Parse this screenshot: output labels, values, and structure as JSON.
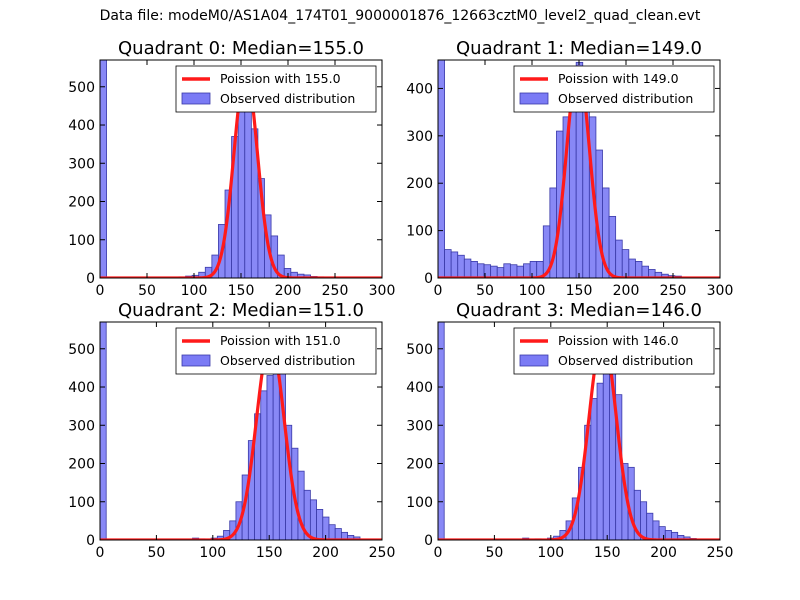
{
  "figure": {
    "suptitle": "Data file: modeM0/AS1A04_174T01_9000001876_12663cztM0_level2_quad_clean.evt"
  },
  "colors": {
    "hist_fill": "#7b7bf5",
    "hist_edge": "#3a3aa8",
    "poisson_line": "#ff1a1a"
  },
  "chart_data": [
    {
      "type": "bar",
      "title": "Quadrant 0: Median=155.0",
      "xlim": [
        0,
        300
      ],
      "ylim": [
        0,
        570
      ],
      "xticks": [
        0,
        50,
        100,
        150,
        200,
        250,
        300
      ],
      "yticks": [
        0,
        100,
        200,
        300,
        400,
        500
      ],
      "legend": {
        "placement": "top-right",
        "line_label": "Poission with 155.0",
        "hist_label": "Observed distribution"
      },
      "bin_width": 7,
      "bins": [
        [
          0,
          570
        ],
        [
          84,
          3
        ],
        [
          91,
          5
        ],
        [
          98,
          7
        ],
        [
          105,
          15
        ],
        [
          112,
          28
        ],
        [
          119,
          60
        ],
        [
          126,
          140
        ],
        [
          133,
          230
        ],
        [
          140,
          370
        ],
        [
          147,
          460
        ],
        [
          154,
          550
        ],
        [
          161,
          390
        ],
        [
          168,
          260
        ],
        [
          175,
          165
        ],
        [
          182,
          110
        ],
        [
          189,
          60
        ],
        [
          196,
          25
        ],
        [
          203,
          15
        ],
        [
          210,
          10
        ],
        [
          217,
          8
        ],
        [
          224,
          4
        ],
        [
          231,
          3
        ],
        [
          238,
          2
        ]
      ],
      "poisson": {
        "mean": 155.0,
        "peak": 540
      }
    },
    {
      "type": "bar",
      "title": "Quadrant 1: Median=149.0",
      "xlim": [
        0,
        300
      ],
      "ylim": [
        0,
        460
      ],
      "xticks": [
        0,
        50,
        100,
        150,
        200,
        250,
        300
      ],
      "yticks": [
        0,
        100,
        200,
        300,
        400
      ],
      "legend": {
        "placement": "top-right",
        "line_label": "Poission with 149.0",
        "hist_label": "Observed distribution"
      },
      "bin_width": 7,
      "bins": [
        [
          0,
          460
        ],
        [
          7,
          60
        ],
        [
          14,
          55
        ],
        [
          21,
          48
        ],
        [
          28,
          40
        ],
        [
          35,
          35
        ],
        [
          42,
          30
        ],
        [
          49,
          28
        ],
        [
          56,
          25
        ],
        [
          63,
          22
        ],
        [
          70,
          30
        ],
        [
          77,
          28
        ],
        [
          84,
          25
        ],
        [
          91,
          30
        ],
        [
          98,
          35
        ],
        [
          105,
          35
        ],
        [
          112,
          110
        ],
        [
          119,
          190
        ],
        [
          126,
          310
        ],
        [
          133,
          340
        ],
        [
          140,
          380
        ],
        [
          147,
          455
        ],
        [
          154,
          400
        ],
        [
          161,
          340
        ],
        [
          168,
          270
        ],
        [
          175,
          190
        ],
        [
          182,
          130
        ],
        [
          189,
          80
        ],
        [
          196,
          60
        ],
        [
          203,
          40
        ],
        [
          210,
          35
        ],
        [
          217,
          25
        ],
        [
          224,
          18
        ],
        [
          231,
          12
        ],
        [
          238,
          8
        ],
        [
          245,
          5
        ],
        [
          252,
          4
        ]
      ],
      "poisson": {
        "mean": 149.0,
        "peak": 445
      }
    },
    {
      "type": "bar",
      "title": "Quadrant 2: Median=151.0",
      "xlim": [
        0,
        250
      ],
      "ylim": [
        0,
        570
      ],
      "xticks": [
        0,
        50,
        100,
        150,
        200,
        250
      ],
      "yticks": [
        0,
        100,
        200,
        300,
        400,
        500
      ],
      "legend": {
        "placement": "top-right",
        "line_label": "Poission with 151.0",
        "hist_label": "Observed distribution"
      },
      "bin_width": 5.5,
      "bins": [
        [
          0,
          570
        ],
        [
          82,
          5
        ],
        [
          87.5,
          3
        ],
        [
          98.5,
          5
        ],
        [
          104,
          10
        ],
        [
          109.5,
          25
        ],
        [
          115,
          50
        ],
        [
          120.5,
          100
        ],
        [
          126,
          170
        ],
        [
          131.5,
          260
        ],
        [
          137,
          330
        ],
        [
          142.5,
          390
        ],
        [
          148,
          430
        ],
        [
          153.5,
          510
        ],
        [
          159,
          470
        ],
        [
          164.5,
          300
        ],
        [
          170,
          240
        ],
        [
          175.5,
          180
        ],
        [
          181,
          130
        ],
        [
          186.5,
          105
        ],
        [
          192,
          80
        ],
        [
          197.5,
          60
        ],
        [
          203,
          40
        ],
        [
          208.5,
          30
        ],
        [
          214,
          20
        ],
        [
          219.5,
          12
        ],
        [
          225,
          8
        ]
      ],
      "poisson": {
        "mean": 151.0,
        "peak": 520
      }
    },
    {
      "type": "bar",
      "title": "Quadrant 3: Median=146.0",
      "xlim": [
        0,
        250
      ],
      "ylim": [
        0,
        570
      ],
      "xticks": [
        0,
        50,
        100,
        150,
        200,
        250
      ],
      "yticks": [
        0,
        100,
        200,
        300,
        400,
        500
      ],
      "legend": {
        "placement": "top-right",
        "line_label": "Poission with 146.0",
        "hist_label": "Observed distribution"
      },
      "bin_width": 5.5,
      "bins": [
        [
          0,
          570
        ],
        [
          75,
          5
        ],
        [
          86,
          3
        ],
        [
          97,
          5
        ],
        [
          102.5,
          10
        ],
        [
          108,
          25
        ],
        [
          113.5,
          50
        ],
        [
          119,
          110
        ],
        [
          124.5,
          190
        ],
        [
          130,
          300
        ],
        [
          135.5,
          370
        ],
        [
          141,
          410
        ],
        [
          146.5,
          520
        ],
        [
          152,
          440
        ],
        [
          157.5,
          380
        ],
        [
          163,
          200
        ],
        [
          168.5,
          190
        ],
        [
          174,
          130
        ],
        [
          179.5,
          100
        ],
        [
          185,
          70
        ],
        [
          190.5,
          50
        ],
        [
          196,
          35
        ],
        [
          201.5,
          25
        ],
        [
          207,
          20
        ],
        [
          212.5,
          12
        ],
        [
          218,
          8
        ],
        [
          223.5,
          4
        ]
      ],
      "poisson": {
        "mean": 146.0,
        "peak": 530
      }
    }
  ]
}
